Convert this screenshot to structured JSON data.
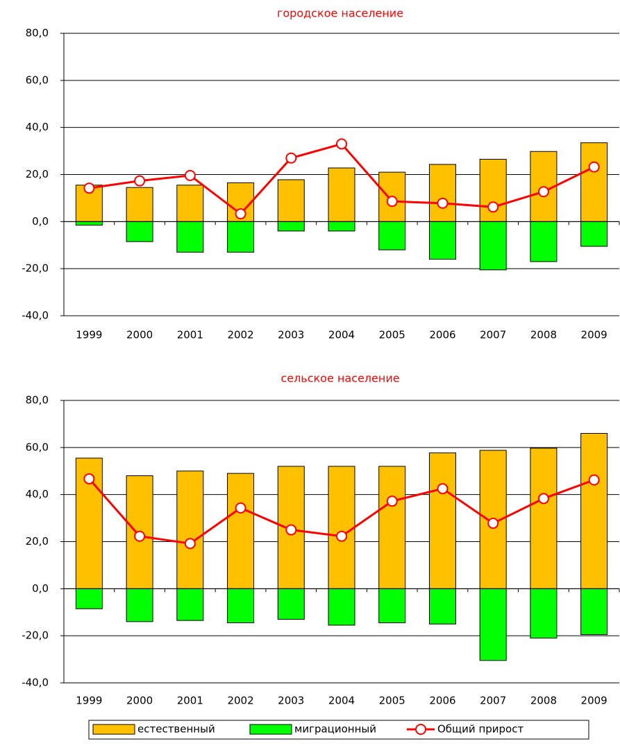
{
  "chart_data": [
    {
      "type": "bar",
      "title": "городское население",
      "categories": [
        "1999",
        "2000",
        "2001",
        "2002",
        "2003",
        "2004",
        "2005",
        "2006",
        "2007",
        "2008",
        "2009"
      ],
      "series": [
        {
          "name": "естественный",
          "color": "#ffc000",
          "values": [
            15.5,
            14.5,
            15.5,
            16.5,
            17.8,
            22.8,
            21,
            24.3,
            26.5,
            29.8,
            33.5
          ]
        },
        {
          "name": "миграционный",
          "color": "#00ff00",
          "values": [
            -1.5,
            -8.5,
            -13,
            -13,
            -4,
            -4,
            -12,
            -16,
            -20.5,
            -17,
            -10.5
          ]
        },
        {
          "name": "Общий прирост",
          "color": "#ff0000",
          "type": "line",
          "values": [
            14.2,
            17.3,
            19.6,
            3.3,
            27,
            33,
            8.6,
            7.8,
            6.2,
            12.7,
            23.2
          ]
        }
      ],
      "ylim": [
        -40,
        80
      ],
      "yticks": [
        {
          "value": -40,
          "label": "-40,0"
        },
        {
          "value": -20,
          "label": "-20,0"
        },
        {
          "value": 0,
          "label": "0,0"
        },
        {
          "value": 20,
          "label": "20,0"
        },
        {
          "value": 40,
          "label": "40,0"
        },
        {
          "value": 60,
          "label": "60,0"
        },
        {
          "value": 80,
          "label": "80,0"
        }
      ],
      "grid": true
    },
    {
      "type": "bar",
      "title": "сельское население",
      "categories": [
        "1999",
        "2000",
        "2001",
        "2002",
        "2003",
        "2004",
        "2005",
        "2006",
        "2007",
        "2008",
        "2009"
      ],
      "series": [
        {
          "name": "естественный",
          "color": "#ffc000",
          "values": [
            55.5,
            48,
            50,
            49,
            52,
            52,
            52,
            57.7,
            58.8,
            59.7,
            66
          ]
        },
        {
          "name": "миграционный",
          "color": "#00ff00",
          "values": [
            -8.5,
            -14,
            -13.5,
            -14.5,
            -13,
            -15.5,
            -14.5,
            -15,
            -30.5,
            -21,
            -19.5
          ]
        },
        {
          "name": "Общий прирост",
          "color": "#ff0000",
          "type": "line",
          "values": [
            46.7,
            22.3,
            19.2,
            34.3,
            25,
            22.3,
            37.2,
            42.5,
            27.8,
            38.3,
            46.2
          ]
        }
      ],
      "ylim": [
        -40,
        80
      ],
      "yticks": [
        {
          "value": -40,
          "label": "-40,0"
        },
        {
          "value": -20,
          "label": "-20,0"
        },
        {
          "value": 0,
          "label": "0,0"
        },
        {
          "value": 20,
          "label": "20,0"
        },
        {
          "value": 40,
          "label": "40,0"
        },
        {
          "value": 60,
          "label": "60,0"
        },
        {
          "value": 80,
          "label": "80,0"
        }
      ],
      "grid": true
    }
  ]
}
